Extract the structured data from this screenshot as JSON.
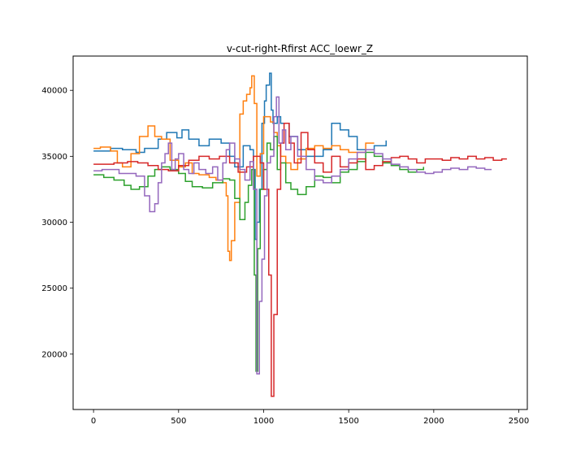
{
  "chart_data": {
    "type": "line",
    "title": "v-cut-right-Rfirst ACC_loewr_Z",
    "xlabel": "",
    "ylabel": "",
    "xlim": [
      -120,
      2550
    ],
    "ylim": [
      15800,
      42600
    ],
    "x_ticks": [
      0,
      500,
      1000,
      1500,
      2000,
      2500
    ],
    "y_ticks": [
      20000,
      25000,
      30000,
      35000,
      40000
    ],
    "grid": false,
    "legend": "none",
    "step": true,
    "series": [
      {
        "color": "#1f77b4",
        "points": [
          [
            0,
            35400
          ],
          [
            100,
            35600
          ],
          [
            170,
            35500
          ],
          [
            250,
            35300
          ],
          [
            300,
            35600
          ],
          [
            380,
            36300
          ],
          [
            430,
            36800
          ],
          [
            490,
            36400
          ],
          [
            520,
            37000
          ],
          [
            560,
            36300
          ],
          [
            620,
            35800
          ],
          [
            680,
            36300
          ],
          [
            750,
            36000
          ],
          [
            800,
            35000
          ],
          [
            830,
            34200
          ],
          [
            880,
            35800
          ],
          [
            920,
            35500
          ],
          [
            940,
            34000
          ],
          [
            950,
            28700
          ],
          [
            960,
            30000
          ],
          [
            975,
            32500
          ],
          [
            990,
            37500
          ],
          [
            1005,
            39200
          ],
          [
            1015,
            40400
          ],
          [
            1035,
            41300
          ],
          [
            1045,
            38500
          ],
          [
            1055,
            37500
          ],
          [
            1080,
            38000
          ],
          [
            1100,
            37500
          ],
          [
            1150,
            36500
          ],
          [
            1200,
            35500
          ],
          [
            1250,
            35000
          ],
          [
            1300,
            35000
          ],
          [
            1350,
            35500
          ],
          [
            1400,
            37500
          ],
          [
            1450,
            37000
          ],
          [
            1500,
            36500
          ],
          [
            1550,
            35500
          ],
          [
            1600,
            35500
          ],
          [
            1650,
            35800
          ],
          [
            1720,
            36200
          ]
        ]
      },
      {
        "color": "#ff7f0e",
        "points": [
          [
            0,
            35600
          ],
          [
            40,
            35700
          ],
          [
            100,
            35400
          ],
          [
            140,
            34500
          ],
          [
            170,
            34200
          ],
          [
            220,
            35200
          ],
          [
            270,
            36500
          ],
          [
            320,
            37300
          ],
          [
            360,
            36500
          ],
          [
            400,
            36300
          ],
          [
            450,
            34700
          ],
          [
            500,
            34200
          ],
          [
            540,
            34500
          ],
          [
            580,
            33700
          ],
          [
            620,
            33600
          ],
          [
            680,
            33400
          ],
          [
            720,
            33200
          ],
          [
            760,
            33000
          ],
          [
            780,
            32000
          ],
          [
            790,
            27800
          ],
          [
            800,
            27100
          ],
          [
            810,
            28600
          ],
          [
            830,
            31500
          ],
          [
            860,
            38200
          ],
          [
            880,
            39200
          ],
          [
            900,
            39700
          ],
          [
            920,
            40200
          ],
          [
            930,
            41100
          ],
          [
            945,
            39000
          ],
          [
            960,
            33500
          ],
          [
            980,
            35200
          ],
          [
            1000,
            38000
          ],
          [
            1020,
            38000
          ],
          [
            1040,
            37600
          ],
          [
            1060,
            36800
          ],
          [
            1080,
            35800
          ],
          [
            1100,
            35000
          ],
          [
            1130,
            34500
          ],
          [
            1160,
            34000
          ],
          [
            1200,
            34800
          ],
          [
            1250,
            35600
          ],
          [
            1300,
            35800
          ],
          [
            1350,
            35600
          ],
          [
            1400,
            35800
          ],
          [
            1450,
            35500
          ],
          [
            1500,
            35300
          ],
          [
            1550,
            35300
          ],
          [
            1600,
            36000
          ],
          [
            1650,
            36000
          ]
        ]
      },
      {
        "color": "#2ca02c",
        "points": [
          [
            0,
            33600
          ],
          [
            60,
            33400
          ],
          [
            120,
            33200
          ],
          [
            180,
            32800
          ],
          [
            220,
            32500
          ],
          [
            270,
            32700
          ],
          [
            320,
            33500
          ],
          [
            360,
            34000
          ],
          [
            400,
            34200
          ],
          [
            450,
            34000
          ],
          [
            500,
            33700
          ],
          [
            540,
            33100
          ],
          [
            580,
            32700
          ],
          [
            640,
            32600
          ],
          [
            700,
            33000
          ],
          [
            760,
            33300
          ],
          [
            800,
            33200
          ],
          [
            830,
            31800
          ],
          [
            860,
            30200
          ],
          [
            890,
            31500
          ],
          [
            910,
            32800
          ],
          [
            930,
            34000
          ],
          [
            945,
            26000
          ],
          [
            955,
            18700
          ],
          [
            965,
            28000
          ],
          [
            980,
            32500
          ],
          [
            1000,
            34000
          ],
          [
            1020,
            36000
          ],
          [
            1040,
            35500
          ],
          [
            1060,
            36500
          ],
          [
            1080,
            34000
          ],
          [
            1100,
            34500
          ],
          [
            1130,
            33000
          ],
          [
            1160,
            32500
          ],
          [
            1200,
            32100
          ],
          [
            1250,
            32700
          ],
          [
            1300,
            33500
          ],
          [
            1350,
            33400
          ],
          [
            1400,
            33000
          ],
          [
            1450,
            33800
          ],
          [
            1500,
            34000
          ],
          [
            1550,
            34600
          ],
          [
            1600,
            35300
          ],
          [
            1650,
            35000
          ],
          [
            1700,
            34500
          ],
          [
            1750,
            34300
          ],
          [
            1800,
            34000
          ],
          [
            1850,
            33800
          ],
          [
            1900,
            34000
          ],
          [
            1940,
            34200
          ]
        ]
      },
      {
        "color": "#d62728",
        "points": [
          [
            0,
            34400
          ],
          [
            60,
            34400
          ],
          [
            120,
            34500
          ],
          [
            200,
            34600
          ],
          [
            260,
            34500
          ],
          [
            320,
            34300
          ],
          [
            380,
            34000
          ],
          [
            440,
            33900
          ],
          [
            500,
            34300
          ],
          [
            560,
            34700
          ],
          [
            620,
            35000
          ],
          [
            680,
            34800
          ],
          [
            740,
            35000
          ],
          [
            800,
            34500
          ],
          [
            850,
            33800
          ],
          [
            900,
            34200
          ],
          [
            940,
            35000
          ],
          [
            980,
            34500
          ],
          [
            1000,
            32500
          ],
          [
            1030,
            26000
          ],
          [
            1045,
            16800
          ],
          [
            1060,
            23000
          ],
          [
            1080,
            32500
          ],
          [
            1100,
            36000
          ],
          [
            1120,
            37500
          ],
          [
            1150,
            36000
          ],
          [
            1180,
            34500
          ],
          [
            1220,
            36800
          ],
          [
            1260,
            35500
          ],
          [
            1300,
            34500
          ],
          [
            1350,
            33800
          ],
          [
            1400,
            35000
          ],
          [
            1450,
            34200
          ],
          [
            1500,
            34500
          ],
          [
            1550,
            34800
          ],
          [
            1600,
            34000
          ],
          [
            1650,
            34300
          ],
          [
            1700,
            34600
          ],
          [
            1750,
            34900
          ],
          [
            1800,
            35000
          ],
          [
            1850,
            34800
          ],
          [
            1900,
            34500
          ],
          [
            1950,
            34800
          ],
          [
            2000,
            34800
          ],
          [
            2050,
            34700
          ],
          [
            2100,
            34900
          ],
          [
            2150,
            34800
          ],
          [
            2200,
            35000
          ],
          [
            2250,
            34800
          ],
          [
            2300,
            34900
          ],
          [
            2350,
            34700
          ],
          [
            2400,
            34800
          ],
          [
            2430,
            34800
          ]
        ]
      },
      {
        "color": "#9467bd",
        "points": [
          [
            0,
            33900
          ],
          [
            50,
            34000
          ],
          [
            100,
            34000
          ],
          [
            150,
            33700
          ],
          [
            200,
            33700
          ],
          [
            250,
            33500
          ],
          [
            300,
            32000
          ],
          [
            330,
            30800
          ],
          [
            360,
            31400
          ],
          [
            380,
            33000
          ],
          [
            400,
            34500
          ],
          [
            420,
            35200
          ],
          [
            440,
            36000
          ],
          [
            460,
            34000
          ],
          [
            480,
            34800
          ],
          [
            500,
            35200
          ],
          [
            530,
            34000
          ],
          [
            560,
            33700
          ],
          [
            590,
            34500
          ],
          [
            620,
            34000
          ],
          [
            660,
            33700
          ],
          [
            700,
            34200
          ],
          [
            730,
            33200
          ],
          [
            760,
            34500
          ],
          [
            780,
            35500
          ],
          [
            800,
            36000
          ],
          [
            830,
            34800
          ],
          [
            860,
            34000
          ],
          [
            890,
            33200
          ],
          [
            920,
            34600
          ],
          [
            940,
            32500
          ],
          [
            960,
            18500
          ],
          [
            975,
            24000
          ],
          [
            990,
            27200
          ],
          [
            1005,
            32000
          ],
          [
            1020,
            34500
          ],
          [
            1040,
            35000
          ],
          [
            1060,
            38000
          ],
          [
            1075,
            39500
          ],
          [
            1090,
            36000
          ],
          [
            1110,
            37000
          ],
          [
            1130,
            35500
          ],
          [
            1160,
            36500
          ],
          [
            1200,
            35000
          ],
          [
            1250,
            34000
          ],
          [
            1300,
            33200
          ],
          [
            1350,
            33000
          ],
          [
            1400,
            33500
          ],
          [
            1450,
            34000
          ],
          [
            1500,
            34800
          ],
          [
            1550,
            35300
          ],
          [
            1600,
            35500
          ],
          [
            1650,
            35200
          ],
          [
            1700,
            34800
          ],
          [
            1750,
            34400
          ],
          [
            1800,
            34200
          ],
          [
            1850,
            34000
          ],
          [
            1900,
            33800
          ],
          [
            1950,
            33700
          ],
          [
            2000,
            33800
          ],
          [
            2050,
            34000
          ],
          [
            2100,
            34100
          ],
          [
            2150,
            34000
          ],
          [
            2200,
            34200
          ],
          [
            2250,
            34100
          ],
          [
            2300,
            34000
          ],
          [
            2340,
            34000
          ]
        ]
      }
    ]
  }
}
